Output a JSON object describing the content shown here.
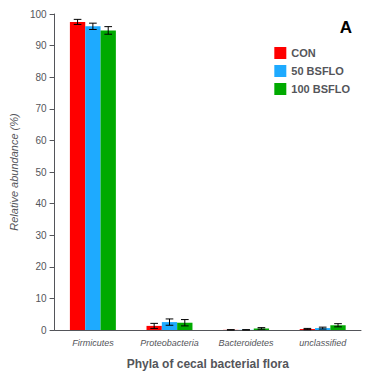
{
  "chart_data": {
    "type": "bar",
    "xlabel": "Phyla of cecal bacterial flora",
    "ylabel": "Relative abundance (%)",
    "annotation": "A",
    "categories": [
      "Firmicutes",
      "Proteobacteria",
      "Bacteroidetes",
      "unclassified"
    ],
    "series": [
      {
        "name": "CON",
        "color": "#FF0000",
        "values": [
          97.5,
          1.3,
          0.05,
          0.3
        ],
        "errors": [
          0.8,
          0.8,
          0.04,
          0.2
        ]
      },
      {
        "name": "50 BSFLO",
        "color": "#1EAAFF",
        "values": [
          96.1,
          2.5,
          0.05,
          0.6
        ],
        "errors": [
          1.0,
          1.0,
          0.04,
          0.3
        ]
      },
      {
        "name": "100 BSFLO",
        "color": "#00AA00",
        "values": [
          94.8,
          2.3,
          0.5,
          1.5
        ],
        "errors": [
          1.2,
          1.0,
          0.25,
          0.5
        ]
      }
    ],
    "ylim": [
      0,
      100
    ],
    "yticks": [
      0,
      10,
      20,
      30,
      40,
      50,
      60,
      70,
      80,
      90,
      100
    ],
    "grid": false,
    "legend": "upper right"
  }
}
